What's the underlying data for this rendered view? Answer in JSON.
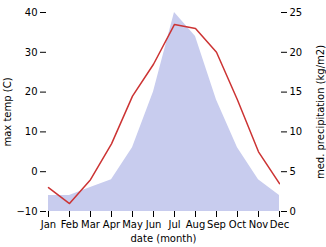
{
  "chart_data": {
    "type": "line",
    "xlabel": "date (month)",
    "ylabel": "max temp (C)",
    "y2label": "med. precipitation (kg/m2)",
    "categories": [
      "Jan",
      "Feb",
      "Mar",
      "Apr",
      "May",
      "Jun",
      "Jul",
      "Aug",
      "Sep",
      "Oct",
      "Nov",
      "Dec"
    ],
    "series": [
      {
        "type": "area",
        "axis": "y2",
        "color": "#c8ccee",
        "values": [
          2,
          2,
          3,
          4,
          8,
          15,
          25,
          22,
          14,
          8,
          4,
          2
        ]
      },
      {
        "type": "line",
        "color": "#cc3333",
        "values": [
          -4,
          -8,
          -2,
          7,
          19,
          27,
          37,
          36,
          30,
          18,
          5,
          -3
        ]
      }
    ],
    "ylim": [
      -10,
      40
    ],
    "yticks": [
      -10,
      0,
      10,
      20,
      30,
      40
    ],
    "y2lim": [
      0,
      25
    ],
    "y2ticks": [
      0,
      5,
      10,
      15,
      20,
      25
    ],
    "grid": false
  }
}
